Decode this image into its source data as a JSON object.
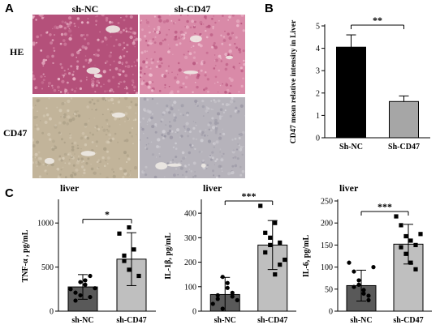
{
  "panel_a": {
    "letter": "A",
    "columns": [
      "sh-NC",
      "sh-CD47"
    ],
    "rows": [
      "HE",
      "CD47"
    ],
    "image_colors": {
      "he_base": "#d98aa8",
      "he_alt": "#b4507a",
      "he_light": "#f1c2d2",
      "ihc_base": "#c2b49a",
      "ihc_alt": "#a89c84",
      "ihc_gray": "#b6b3bb"
    }
  },
  "panel_b": {
    "letter": "B"
  },
  "panel_c": {
    "letter": "C"
  },
  "chart_data": [
    {
      "id": "b",
      "type": "bar",
      "ylabel": "CD47 mean relative intensity in Liver",
      "categories": [
        "Sh-NC",
        "Sh-CD47"
      ],
      "values": [
        4.05,
        1.62
      ],
      "errors": [
        0.55,
        0.25
      ],
      "ylim": [
        0,
        5
      ],
      "yticks": [
        0,
        1,
        2,
        3,
        4,
        5
      ],
      "bar_colors": [
        "#000000",
        "#a6a6a6"
      ],
      "significance": "**"
    },
    {
      "id": "c1",
      "type": "bar",
      "title": "liver",
      "ylabel": "TNF-α , pg/mL",
      "categories": [
        "sh-NC",
        "sh-CD47"
      ],
      "values": [
        275,
        590
      ],
      "errors": [
        140,
        300
      ],
      "ylim": [
        0,
        1250
      ],
      "yticks": [
        0,
        500,
        1000
      ],
      "bar_colors": [
        "#595959",
        "#bfbfbf"
      ],
      "significance": "*",
      "points": [
        [
          250,
          210,
          180,
          300,
          400,
          120,
          330,
          350,
          160,
          260
        ],
        [
          880,
          630,
          470,
          700,
          400,
          570,
          950
        ]
      ]
    },
    {
      "id": "c2",
      "type": "bar",
      "title": "liver",
      "ylabel": "IL-1β, pg/mL",
      "categories": [
        "sh-NC",
        "sh-CD47"
      ],
      "values": [
        68,
        270
      ],
      "errors": [
        70,
        100
      ],
      "ylim": [
        0,
        450
      ],
      "yticks": [
        0,
        100,
        200,
        300,
        400
      ],
      "bar_colors": [
        "#595959",
        "#bfbfbf"
      ],
      "significance": "***",
      "points": [
        [
          30,
          65,
          10,
          115,
          75,
          50,
          140,
          95,
          60,
          45
        ],
        [
          430,
          320,
          270,
          360,
          190,
          240,
          300,
          150,
          280,
          210
        ]
      ]
    },
    {
      "id": "c3",
      "type": "bar",
      "title": "liver",
      "ylabel": "IL-6, pg/mL",
      "categories": [
        "sh-NC",
        "sh-CD47"
      ],
      "values": [
        58,
        152
      ],
      "errors": [
        35,
        45
      ],
      "ylim": [
        0,
        250
      ],
      "yticks": [
        0,
        50,
        100,
        150,
        200,
        250
      ],
      "bar_colors": [
        "#595959",
        "#bfbfbf"
      ],
      "significance": "***",
      "points": [
        [
          110,
          90,
          60,
          40,
          25,
          55,
          70,
          48,
          35,
          100
        ],
        [
          215,
          195,
          170,
          160,
          150,
          145,
          130,
          110,
          95,
          175
        ]
      ]
    }
  ]
}
